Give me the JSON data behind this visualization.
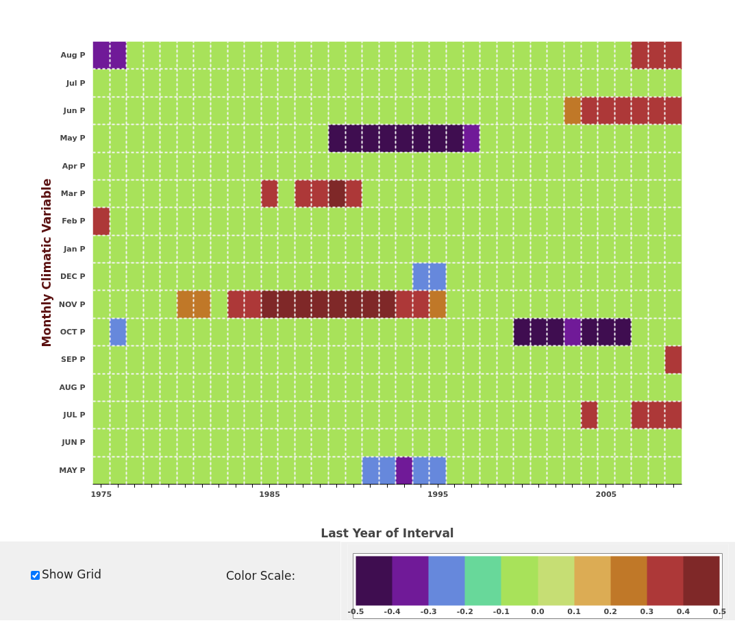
{
  "chart_data": {
    "type": "heatmap",
    "xlabel": "Last Year of Interval",
    "ylabel": "Monthly Climatic Variable",
    "categories": [
      "1975",
      null,
      null,
      null,
      null,
      null,
      null,
      null,
      null,
      null,
      "1985",
      null,
      null,
      null,
      null,
      null,
      null,
      null,
      null,
      null,
      "1995",
      null,
      null,
      null,
      null,
      null,
      null,
      null,
      null,
      null,
      "2005",
      null,
      null,
      null,
      null
    ],
    "y_categories": [
      "Aug P",
      "Jul P",
      "Jun P",
      "May P",
      "Apr P",
      "Mar P",
      "Feb P",
      "Jan P",
      "DEC P",
      "NOV P",
      "OCT P",
      "SEP P",
      "AUG P",
      "JUL P",
      "JUN P",
      "MAY P"
    ],
    "cells": [
      [
        -0.35,
        -0.35,
        -0.05,
        -0.05,
        -0.05,
        -0.05,
        -0.05,
        -0.05,
        -0.05,
        -0.05,
        -0.05,
        -0.05,
        -0.05,
        -0.05,
        -0.05,
        -0.05,
        -0.05,
        -0.05,
        -0.05,
        -0.05,
        -0.05,
        -0.05,
        -0.05,
        -0.05,
        -0.05,
        -0.05,
        -0.05,
        -0.05,
        -0.05,
        -0.05,
        -0.05,
        -0.05,
        0.35,
        0.35,
        0.35
      ],
      [
        -0.05,
        -0.05,
        -0.05,
        -0.05,
        -0.05,
        -0.05,
        -0.05,
        -0.05,
        -0.05,
        -0.05,
        -0.05,
        -0.05,
        -0.05,
        -0.05,
        -0.05,
        -0.05,
        -0.05,
        -0.05,
        -0.05,
        -0.05,
        -0.05,
        -0.05,
        -0.05,
        -0.05,
        -0.05,
        -0.05,
        -0.05,
        -0.05,
        -0.05,
        -0.05,
        -0.05,
        -0.05,
        -0.05,
        -0.05,
        -0.05
      ],
      [
        -0.05,
        -0.05,
        -0.05,
        -0.05,
        -0.05,
        -0.05,
        -0.05,
        -0.05,
        -0.05,
        -0.05,
        -0.05,
        -0.05,
        -0.05,
        -0.05,
        -0.05,
        -0.05,
        -0.05,
        -0.05,
        -0.05,
        -0.05,
        -0.05,
        -0.05,
        -0.05,
        -0.05,
        -0.05,
        -0.05,
        -0.05,
        -0.05,
        0.25,
        0.35,
        0.35,
        0.35,
        0.35,
        0.35,
        0.35
      ],
      [
        -0.05,
        -0.05,
        -0.05,
        -0.05,
        -0.05,
        -0.05,
        -0.05,
        -0.05,
        -0.05,
        -0.05,
        -0.05,
        -0.05,
        -0.05,
        -0.05,
        -0.45,
        -0.45,
        -0.45,
        -0.45,
        -0.45,
        -0.45,
        -0.45,
        -0.45,
        -0.35,
        -0.05,
        -0.05,
        -0.05,
        -0.05,
        -0.05,
        -0.05,
        -0.05,
        -0.05,
        -0.05,
        -0.05,
        -0.05,
        -0.05
      ],
      [
        -0.05,
        -0.05,
        -0.05,
        -0.05,
        -0.05,
        -0.05,
        -0.05,
        -0.05,
        -0.05,
        -0.05,
        -0.05,
        -0.05,
        -0.05,
        -0.05,
        -0.05,
        -0.05,
        -0.05,
        -0.05,
        -0.05,
        -0.05,
        -0.05,
        -0.05,
        -0.05,
        -0.05,
        -0.05,
        -0.05,
        -0.05,
        -0.05,
        -0.05,
        -0.05,
        -0.05,
        -0.05,
        -0.05,
        -0.05,
        -0.05
      ],
      [
        -0.05,
        -0.05,
        -0.05,
        -0.05,
        -0.05,
        -0.05,
        -0.05,
        -0.05,
        -0.05,
        -0.05,
        0.35,
        -0.05,
        0.35,
        0.35,
        0.45,
        0.35,
        -0.05,
        -0.05,
        -0.05,
        -0.05,
        -0.05,
        -0.05,
        -0.05,
        -0.05,
        -0.05,
        -0.05,
        -0.05,
        -0.05,
        -0.05,
        -0.05,
        -0.05,
        -0.05,
        -0.05,
        -0.05,
        -0.05
      ],
      [
        0.35,
        -0.05,
        -0.05,
        -0.05,
        -0.05,
        -0.05,
        -0.05,
        -0.05,
        -0.05,
        -0.05,
        -0.05,
        -0.05,
        -0.05,
        -0.05,
        -0.05,
        -0.05,
        -0.05,
        -0.05,
        -0.05,
        -0.05,
        -0.05,
        -0.05,
        -0.05,
        -0.05,
        -0.05,
        -0.05,
        -0.05,
        -0.05,
        -0.05,
        -0.05,
        -0.05,
        -0.05,
        -0.05,
        -0.05,
        -0.05
      ],
      [
        -0.05,
        -0.05,
        -0.05,
        -0.05,
        -0.05,
        -0.05,
        -0.05,
        -0.05,
        -0.05,
        -0.05,
        -0.05,
        -0.05,
        -0.05,
        -0.05,
        -0.05,
        -0.05,
        -0.05,
        -0.05,
        -0.05,
        -0.05,
        -0.05,
        -0.05,
        -0.05,
        -0.05,
        -0.05,
        -0.05,
        -0.05,
        -0.05,
        -0.05,
        -0.05,
        -0.05,
        -0.05,
        -0.05,
        -0.05,
        -0.05
      ],
      [
        -0.05,
        -0.05,
        -0.05,
        -0.05,
        -0.05,
        -0.05,
        -0.05,
        -0.05,
        -0.05,
        -0.05,
        -0.05,
        -0.05,
        -0.05,
        -0.05,
        -0.05,
        -0.05,
        -0.05,
        -0.05,
        -0.05,
        -0.25,
        -0.25,
        -0.05,
        -0.05,
        -0.05,
        -0.05,
        -0.05,
        -0.05,
        -0.05,
        -0.05,
        -0.05,
        -0.05,
        -0.05,
        -0.05,
        -0.05,
        -0.05
      ],
      [
        -0.05,
        -0.05,
        -0.05,
        -0.05,
        -0.05,
        0.25,
        0.25,
        -0.05,
        0.35,
        0.35,
        0.45,
        0.45,
        0.45,
        0.45,
        0.45,
        0.45,
        0.45,
        0.45,
        0.35,
        0.35,
        0.25,
        -0.05,
        -0.05,
        -0.05,
        -0.05,
        -0.05,
        -0.05,
        -0.05,
        -0.05,
        -0.05,
        -0.05,
        -0.05,
        -0.05,
        -0.05,
        -0.05
      ],
      [
        -0.05,
        -0.25,
        -0.05,
        -0.05,
        -0.05,
        -0.05,
        -0.05,
        -0.05,
        -0.05,
        -0.05,
        -0.05,
        -0.05,
        -0.05,
        -0.05,
        -0.05,
        -0.05,
        -0.05,
        -0.05,
        -0.05,
        -0.05,
        -0.05,
        -0.05,
        -0.05,
        -0.05,
        -0.05,
        -0.45,
        -0.45,
        -0.45,
        -0.35,
        -0.45,
        -0.45,
        -0.45,
        -0.05,
        -0.05,
        -0.05
      ],
      [
        -0.05,
        -0.05,
        -0.05,
        -0.05,
        -0.05,
        -0.05,
        -0.05,
        -0.05,
        -0.05,
        -0.05,
        -0.05,
        -0.05,
        -0.05,
        -0.05,
        -0.05,
        -0.05,
        -0.05,
        -0.05,
        -0.05,
        -0.05,
        -0.05,
        -0.05,
        -0.05,
        -0.05,
        -0.05,
        -0.05,
        -0.05,
        -0.05,
        -0.05,
        -0.05,
        -0.05,
        -0.05,
        -0.05,
        -0.05,
        0.35
      ],
      [
        -0.05,
        -0.05,
        -0.05,
        -0.05,
        -0.05,
        -0.05,
        -0.05,
        -0.05,
        -0.05,
        -0.05,
        -0.05,
        -0.05,
        -0.05,
        -0.05,
        -0.05,
        -0.05,
        -0.05,
        -0.05,
        -0.05,
        -0.05,
        -0.05,
        -0.05,
        -0.05,
        -0.05,
        -0.05,
        -0.05,
        -0.05,
        -0.05,
        -0.05,
        -0.05,
        -0.05,
        -0.05,
        -0.05,
        -0.05,
        -0.05
      ],
      [
        -0.05,
        -0.05,
        -0.05,
        -0.05,
        -0.05,
        -0.05,
        -0.05,
        -0.05,
        -0.05,
        -0.05,
        -0.05,
        -0.05,
        -0.05,
        -0.05,
        -0.05,
        -0.05,
        -0.05,
        -0.05,
        -0.05,
        -0.05,
        -0.05,
        -0.05,
        -0.05,
        -0.05,
        -0.05,
        -0.05,
        -0.05,
        -0.05,
        -0.05,
        0.35,
        -0.05,
        -0.05,
        0.35,
        0.35,
        0.35
      ],
      [
        -0.05,
        -0.05,
        -0.05,
        -0.05,
        -0.05,
        -0.05,
        -0.05,
        -0.05,
        -0.05,
        -0.05,
        -0.05,
        -0.05,
        -0.05,
        -0.05,
        -0.05,
        -0.05,
        -0.05,
        -0.05,
        -0.05,
        -0.05,
        -0.05,
        -0.05,
        -0.05,
        -0.05,
        -0.05,
        -0.05,
        -0.05,
        -0.05,
        -0.05,
        -0.05,
        -0.05,
        -0.05,
        -0.05,
        -0.05,
        -0.05
      ],
      [
        -0.05,
        -0.05,
        -0.05,
        -0.05,
        -0.05,
        -0.05,
        -0.05,
        -0.05,
        -0.05,
        -0.05,
        -0.05,
        -0.05,
        -0.05,
        -0.05,
        -0.05,
        -0.05,
        -0.25,
        -0.25,
        -0.35,
        -0.25,
        -0.25,
        -0.05,
        -0.05,
        -0.05,
        -0.05,
        -0.05,
        -0.05,
        -0.05,
        -0.05,
        -0.05,
        -0.05,
        -0.05,
        -0.05,
        -0.05,
        -0.05
      ]
    ],
    "colors": [
      "#3f0d50",
      "#701a98",
      "#6688dc",
      "#68d89a",
      "#a8e25a",
      "#c6de74",
      "#dcac54",
      "#c07828",
      "#ad3838",
      "#7f2828"
    ],
    "clim": [
      -0.5,
      0.5
    ],
    "cticks": [
      -0.5,
      -0.4,
      -0.3,
      -0.2,
      -0.1,
      {
        "value": 0,
        "label": "0.0"
      },
      0.1,
      0.2,
      0.3,
      0.4,
      0.5
    ],
    "grid": true,
    "annotations": [
      "Show Grid",
      "Color Scale:"
    ]
  }
}
